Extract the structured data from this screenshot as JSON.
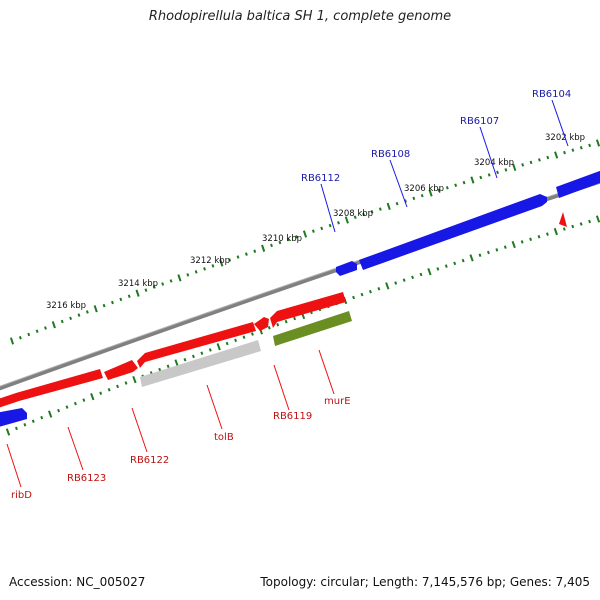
{
  "header": {
    "title": "Rhodopirellula baltica SH 1, complete genome"
  },
  "footer": {
    "accession": "Accession: NC_005027",
    "summary": "Topology: circular; Length: 7,145,576 bp; Genes: 7,405"
  },
  "colors": {
    "backbone": "#808080",
    "tick": "#1e7a1e",
    "plus_gene": "#1818e6",
    "minus_gene": "#ee1111",
    "olive_gene": "#6b8e23",
    "gray_gene": "#c8c8c8",
    "plus_label": "#1a1aa8",
    "minus_label": "#c01010"
  },
  "scale_labels": [
    {
      "kbp": 3202,
      "label": "3202 kbp"
    },
    {
      "kbp": 3204,
      "label": "3204 kbp"
    },
    {
      "kbp": 3206,
      "label": "3206 kbp"
    },
    {
      "kbp": 3208,
      "label": "3208 kbp"
    },
    {
      "kbp": 3210,
      "label": "3210 kbp"
    },
    {
      "kbp": 3212,
      "label": "3212 kbp"
    },
    {
      "kbp": 3214,
      "label": "3214 kbp"
    },
    {
      "kbp": 3216,
      "label": "3216 kbp"
    }
  ],
  "gene_labels": [
    {
      "name": "RB6104",
      "strand": "plus"
    },
    {
      "name": "RB6107",
      "strand": "plus"
    },
    {
      "name": "RB6108",
      "strand": "plus"
    },
    {
      "name": "RB6112",
      "strand": "plus"
    },
    {
      "name": "murE",
      "strand": "minus"
    },
    {
      "name": "RB6119",
      "strand": "minus"
    },
    {
      "name": "tolB",
      "strand": "minus"
    },
    {
      "name": "RB6122",
      "strand": "minus"
    },
    {
      "name": "RB6123",
      "strand": "minus"
    },
    {
      "name": "ribD",
      "strand": "minus"
    }
  ]
}
